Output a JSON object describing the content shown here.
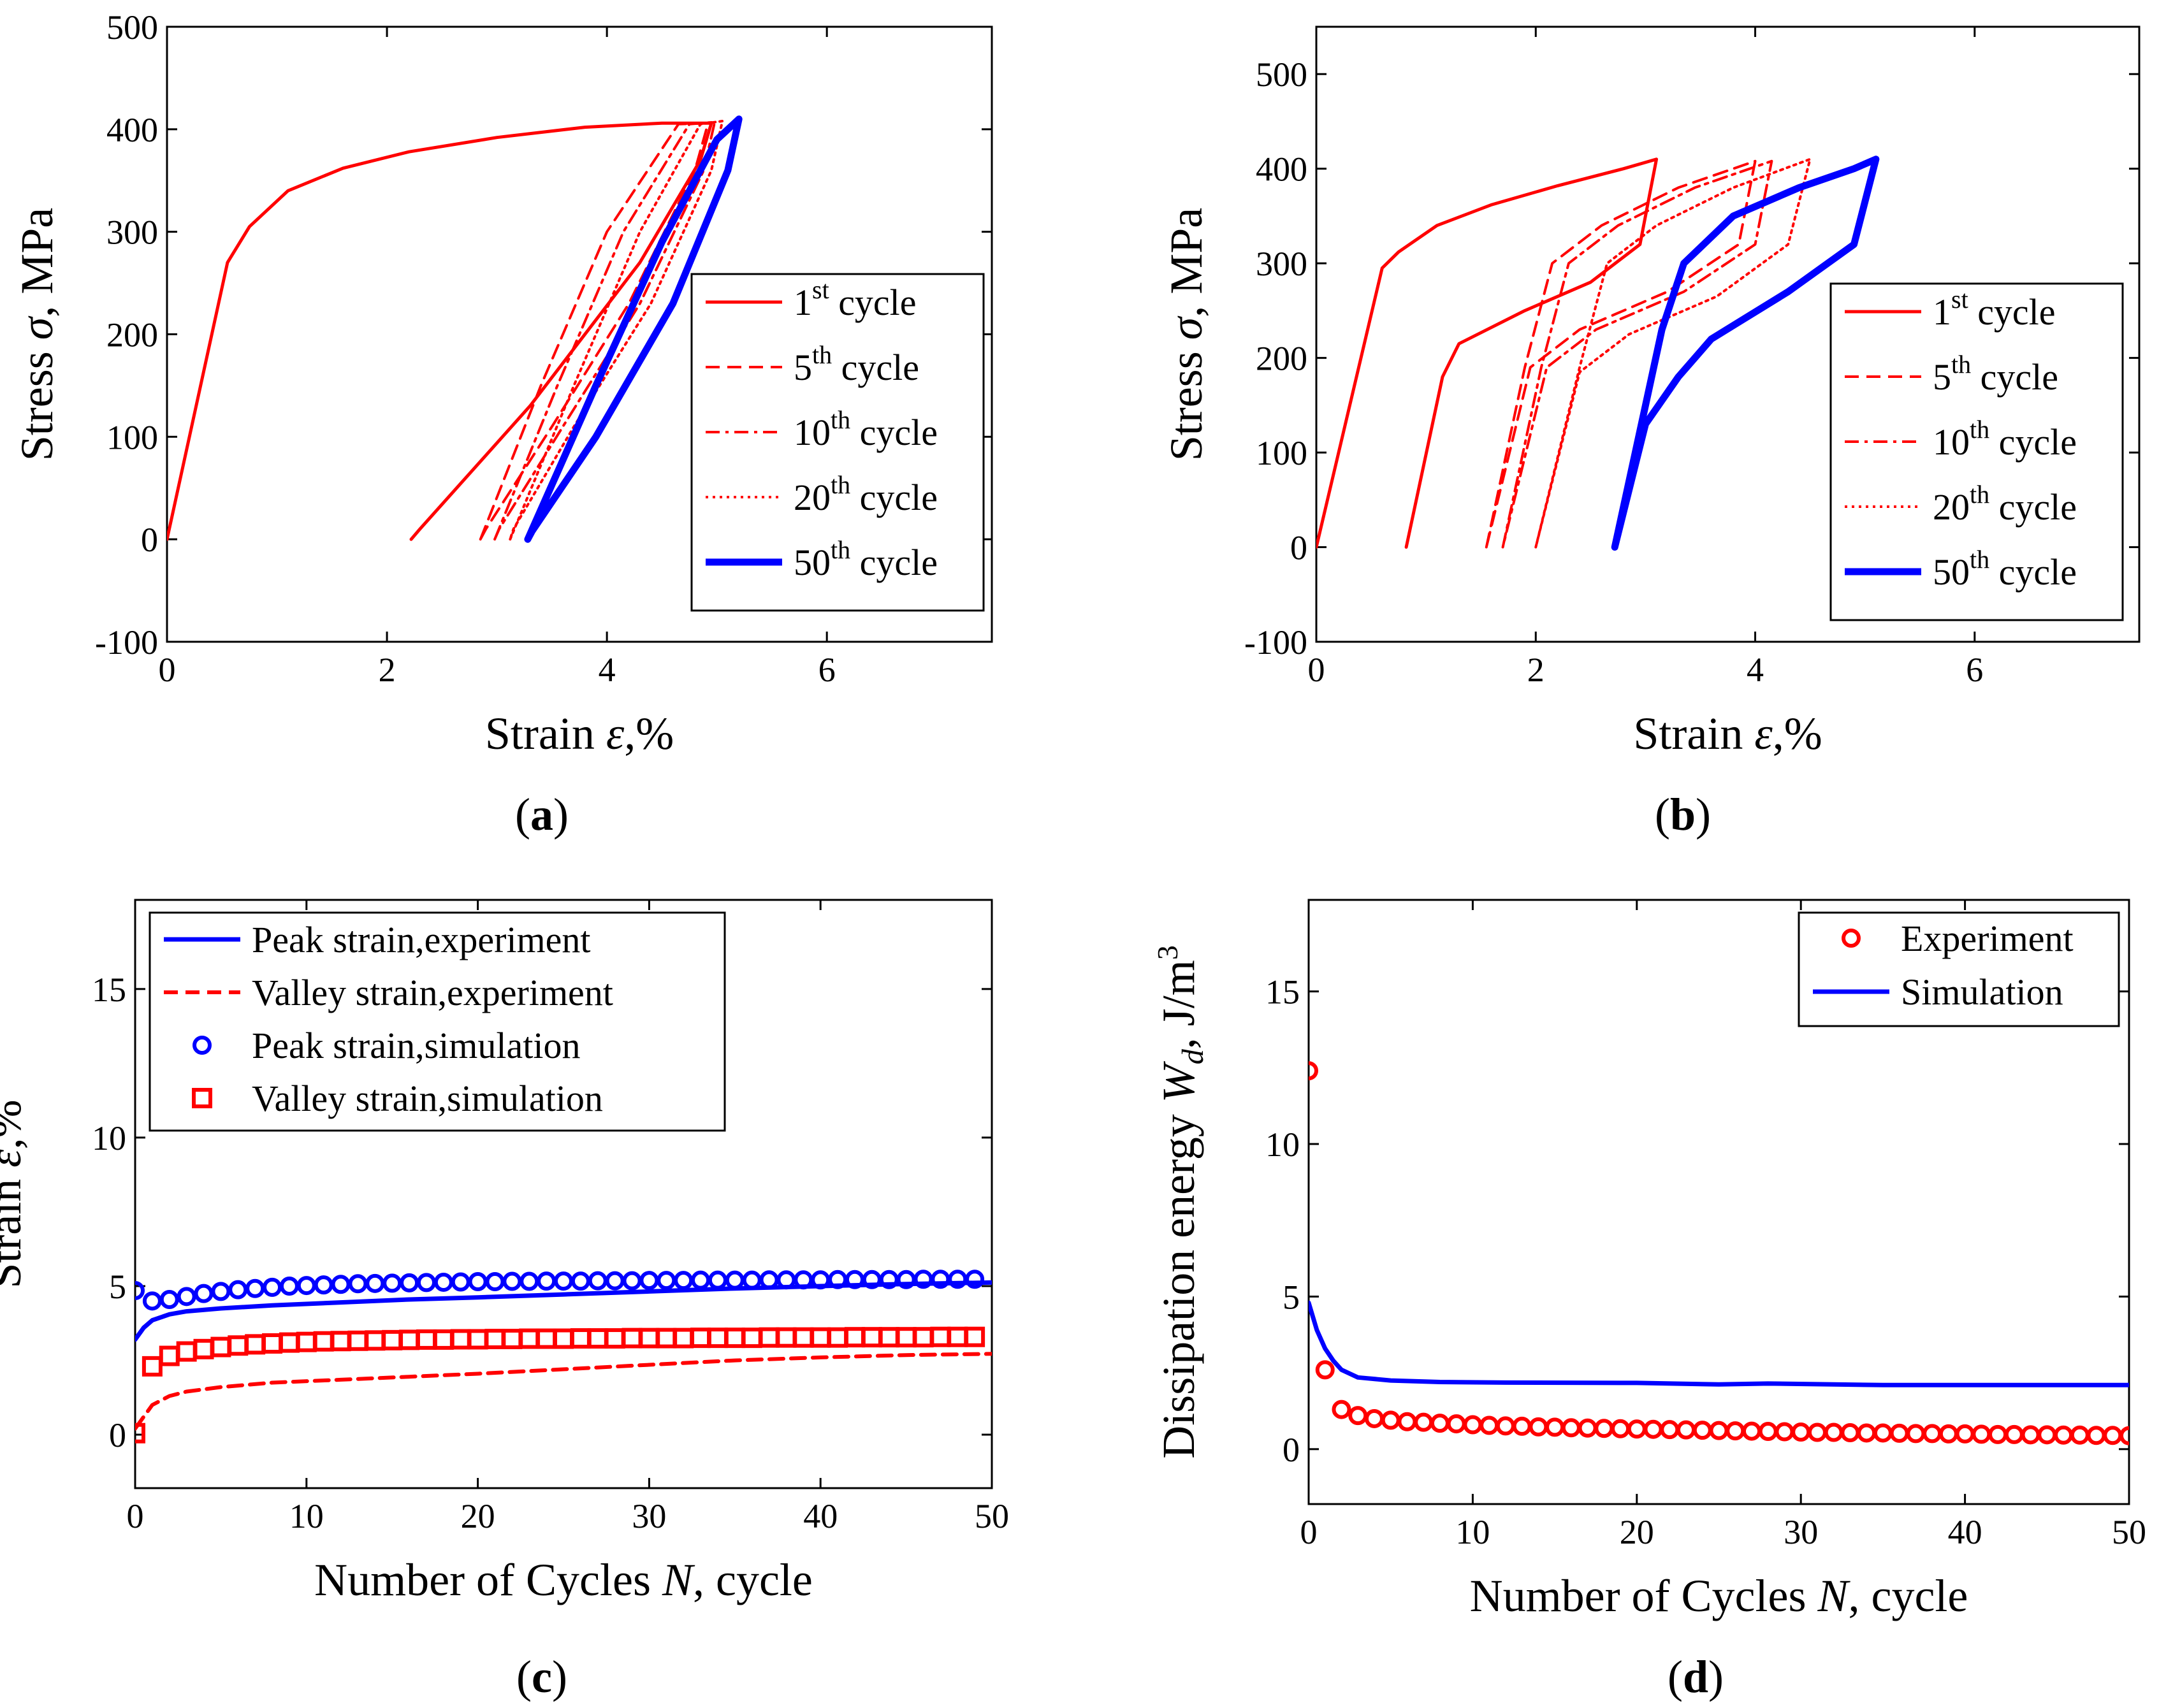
{
  "figure": {
    "panel_labels": {
      "a": "a",
      "b": "b",
      "c": "c",
      "d": "d"
    }
  },
  "chart_data": [
    {
      "id": "a",
      "type": "line",
      "xlabel": "Strain",
      "xsym": "ε",
      "xunit": ",%",
      "ylabel": "Stress",
      "ysym": "σ",
      "yunit": ", MPa",
      "xlim": [
        0,
        7.5
      ],
      "ylim": [
        -100,
        500
      ],
      "xticks": [
        0,
        2,
        4,
        6
      ],
      "yticks": [
        -100,
        0,
        100,
        200,
        300,
        400,
        500
      ],
      "legend_position": "right",
      "legend": [
        {
          "pre": "1",
          "sup": "st",
          "post": " cycle",
          "style": "solid",
          "color": "#ff0000"
        },
        {
          "pre": "5",
          "sup": "th",
          "post": " cycle",
          "style": "dashed",
          "color": "#ff0000"
        },
        {
          "pre": "10",
          "sup": "th",
          "post": " cycle",
          "style": "dashdot",
          "color": "#ff0000"
        },
        {
          "pre": "20",
          "sup": "th",
          "post": " cycle",
          "style": "dotted",
          "color": "#ff0000"
        },
        {
          "pre": "50",
          "sup": "th",
          "post": " cycle",
          "style": "thick",
          "color": "#0000ff"
        }
      ],
      "series": [
        {
          "name": "1st cycle",
          "style": "solid",
          "color": "#ff0000",
          "x": [
            0,
            0.55,
            0.75,
            1.1,
            1.6,
            2.2,
            3.0,
            3.8,
            4.5,
            4.95,
            4.85,
            4.3,
            3.3,
            2.3,
            2.22
          ],
          "y": [
            0,
            270,
            305,
            340,
            362,
            378,
            392,
            402,
            406,
            406,
            370,
            270,
            130,
            10,
            0
          ]
        },
        {
          "name": "5th cycle",
          "style": "dashed",
          "color": "#ff0000",
          "x": [
            2.85,
            3.4,
            4.0,
            4.65,
            4.92,
            4.8,
            4.2,
            3.5,
            2.9,
            2.85
          ],
          "y": [
            0,
            150,
            300,
            405,
            406,
            360,
            230,
            110,
            10,
            0
          ]
        },
        {
          "name": "10th cycle",
          "style": "dashdot",
          "color": "#ff0000",
          "x": [
            2.98,
            3.55,
            4.15,
            4.75,
            4.98,
            4.88,
            4.3,
            3.6,
            3.02,
            2.98
          ],
          "y": [
            0,
            150,
            300,
            405,
            407,
            360,
            230,
            110,
            10,
            0
          ]
        },
        {
          "name": "20th cycle",
          "style": "dotted",
          "color": "#ff0000",
          "x": [
            3.12,
            3.7,
            4.3,
            4.85,
            5.05,
            4.95,
            4.4,
            3.7,
            3.15,
            3.12
          ],
          "y": [
            0,
            150,
            300,
            405,
            408,
            360,
            230,
            110,
            10,
            0
          ]
        },
        {
          "name": "50th cycle",
          "style": "thick",
          "color": "#0000ff",
          "x": [
            3.28,
            3.9,
            4.5,
            5.0,
            5.2,
            5.1,
            4.6,
            3.9,
            3.32,
            3.28
          ],
          "y": [
            0,
            150,
            290,
            390,
            410,
            360,
            230,
            100,
            8,
            0
          ]
        }
      ]
    },
    {
      "id": "b",
      "type": "line",
      "xlabel": "Strain",
      "xsym": "ε",
      "xunit": ",%",
      "ylabel": "Stress",
      "ysym": "σ",
      "yunit": ", MPa",
      "xlim": [
        0,
        7.5
      ],
      "ylim": [
        -100,
        550
      ],
      "xticks": [
        0,
        2,
        4,
        6
      ],
      "yticks": [
        -100,
        0,
        100,
        200,
        300,
        400,
        500
      ],
      "legend_position": "right",
      "legend": [
        {
          "pre": "1",
          "sup": "st",
          "post": " cycle",
          "style": "solid",
          "color": "#ff0000"
        },
        {
          "pre": "5",
          "sup": "th",
          "post": " cycle",
          "style": "dashed",
          "color": "#ff0000"
        },
        {
          "pre": "10",
          "sup": "th",
          "post": " cycle",
          "style": "dashdot",
          "color": "#ff0000"
        },
        {
          "pre": "20",
          "sup": "th",
          "post": " cycle",
          "style": "dotted",
          "color": "#ff0000"
        },
        {
          "pre": "50",
          "sup": "th",
          "post": " cycle",
          "style": "thick",
          "color": "#0000ff"
        }
      ],
      "series": [
        {
          "name": "1st cycle",
          "style": "solid",
          "color": "#ff0000",
          "x": [
            0,
            0.6,
            0.75,
            1.1,
            1.6,
            2.2,
            2.8,
            3.1,
            2.95,
            2.5,
            1.9,
            1.3,
            1.15,
            0.82
          ],
          "y": [
            0,
            295,
            312,
            340,
            362,
            382,
            400,
            410,
            320,
            280,
            250,
            215,
            180,
            0
          ]
        },
        {
          "name": "5th cycle",
          "style": "dashed",
          "color": "#ff0000",
          "x": [
            1.55,
            1.9,
            2.15,
            2.6,
            3.3,
            4.0,
            3.85,
            3.2,
            2.4,
            1.95,
            1.55
          ],
          "y": [
            0,
            190,
            300,
            340,
            380,
            408,
            320,
            270,
            230,
            190,
            0
          ]
        },
        {
          "name": "10th cycle",
          "style": "dashdot",
          "color": "#ff0000",
          "x": [
            1.7,
            2.05,
            2.3,
            2.75,
            3.45,
            4.15,
            4.0,
            3.35,
            2.55,
            2.1,
            1.7
          ],
          "y": [
            0,
            190,
            300,
            340,
            380,
            408,
            320,
            270,
            230,
            190,
            0
          ]
        },
        {
          "name": "20th cycle",
          "style": "dotted",
          "color": "#ff0000",
          "x": [
            2.0,
            2.4,
            2.65,
            3.1,
            3.8,
            4.5,
            4.3,
            3.65,
            2.85,
            2.4,
            2.0
          ],
          "y": [
            0,
            190,
            300,
            340,
            380,
            410,
            320,
            265,
            225,
            185,
            0
          ]
        },
        {
          "name": "50th cycle",
          "style": "thick",
          "color": "#0000ff",
          "x": [
            2.72,
            3.15,
            3.35,
            3.8,
            4.4,
            4.9,
            5.1,
            4.9,
            4.3,
            3.6,
            3.3,
            3.0,
            2.72
          ],
          "y": [
            0,
            230,
            300,
            350,
            380,
            400,
            410,
            320,
            270,
            220,
            180,
            130,
            0
          ]
        }
      ]
    },
    {
      "id": "c",
      "type": "line",
      "xlabel": "Number of Cycles",
      "xsym": "N",
      "xunit": ", cycle",
      "ylabel": "Strain",
      "ysym": "ε",
      "yunit": ",%",
      "xlim": [
        0,
        50
      ],
      "ylim": [
        -1.8,
        18
      ],
      "xticks": [
        0,
        10,
        20,
        30,
        40,
        50
      ],
      "yticks": [
        0,
        5,
        10,
        15
      ],
      "legend_position": "top-left",
      "legend": [
        {
          "label": "Peak strain,experiment",
          "style": "solid",
          "color": "#0000ff"
        },
        {
          "label": "Valley strain,experiment",
          "style": "dashed",
          "color": "#ff0000"
        },
        {
          "label": "Peak strain,simulation",
          "style": "circle",
          "color": "#0000ff"
        },
        {
          "label": "Valley strain,simulation",
          "style": "square",
          "color": "#ff0000"
        }
      ],
      "series": [
        {
          "name": "Peak strain,experiment",
          "style": "solid",
          "color": "#0000ff",
          "x": [
            0,
            0.5,
            1,
            2,
            3,
            5,
            8,
            12,
            16,
            20,
            25,
            30,
            35,
            40,
            45,
            50
          ],
          "y": [
            3.2,
            3.6,
            3.85,
            4.05,
            4.15,
            4.25,
            4.35,
            4.45,
            4.55,
            4.62,
            4.72,
            4.82,
            4.92,
            5.0,
            5.07,
            5.12
          ]
        },
        {
          "name": "Valley strain,experiment",
          "style": "dashed",
          "color": "#ff0000",
          "x": [
            0,
            0.5,
            1,
            2,
            3,
            5,
            8,
            12,
            16,
            20,
            25,
            30,
            35,
            40,
            45,
            50
          ],
          "y": [
            0.2,
            0.6,
            1.0,
            1.3,
            1.45,
            1.6,
            1.75,
            1.85,
            1.95,
            2.05,
            2.2,
            2.35,
            2.5,
            2.6,
            2.68,
            2.72
          ]
        },
        {
          "name": "Peak strain,simulation",
          "style": "circle",
          "color": "#0000ff",
          "x": [
            0,
            1,
            2,
            3,
            4,
            5,
            6,
            7,
            8,
            9,
            10,
            11,
            12,
            13,
            14,
            15,
            16,
            17,
            18,
            19,
            20,
            21,
            22,
            23,
            24,
            25,
            26,
            27,
            28,
            29,
            30,
            31,
            32,
            33,
            34,
            35,
            36,
            37,
            38,
            39,
            40,
            41,
            42,
            43,
            44,
            45,
            46,
            47,
            48,
            49
          ],
          "y": [
            4.85,
            4.5,
            4.55,
            4.65,
            4.75,
            4.82,
            4.88,
            4.92,
            4.96,
            5.0,
            5.02,
            5.04,
            5.06,
            5.08,
            5.09,
            5.1,
            5.11,
            5.12,
            5.13,
            5.14,
            5.15,
            5.15,
            5.16,
            5.16,
            5.17,
            5.17,
            5.17,
            5.18,
            5.18,
            5.18,
            5.19,
            5.19,
            5.19,
            5.2,
            5.2,
            5.2,
            5.2,
            5.21,
            5.21,
            5.21,
            5.21,
            5.22,
            5.22,
            5.22,
            5.22,
            5.22,
            5.23,
            5.23,
            5.23,
            5.23
          ]
        },
        {
          "name": "Valley strain,simulation",
          "style": "square",
          "color": "#ff0000",
          "x": [
            0,
            1,
            2,
            3,
            4,
            5,
            6,
            7,
            8,
            9,
            10,
            11,
            12,
            13,
            14,
            15,
            16,
            17,
            18,
            19,
            20,
            21,
            22,
            23,
            24,
            25,
            26,
            27,
            28,
            29,
            30,
            31,
            32,
            33,
            34,
            35,
            36,
            37,
            38,
            39,
            40,
            41,
            42,
            43,
            44,
            45,
            46,
            47,
            48,
            49
          ],
          "y": [
            0.05,
            2.3,
            2.65,
            2.8,
            2.88,
            2.95,
            3.0,
            3.04,
            3.07,
            3.1,
            3.12,
            3.14,
            3.15,
            3.16,
            3.17,
            3.18,
            3.19,
            3.2,
            3.2,
            3.21,
            3.21,
            3.22,
            3.22,
            3.23,
            3.23,
            3.23,
            3.24,
            3.24,
            3.24,
            3.25,
            3.25,
            3.25,
            3.25,
            3.26,
            3.26,
            3.26,
            3.26,
            3.27,
            3.27,
            3.27,
            3.27,
            3.27,
            3.28,
            3.28,
            3.28,
            3.28,
            3.28,
            3.29,
            3.29,
            3.29
          ]
        }
      ]
    },
    {
      "id": "d",
      "type": "scatter",
      "xlabel": "Number of Cycles",
      "xsym": "N",
      "xunit": ", cycle",
      "ylabel": "Dissipation energy",
      "ysym": "W",
      "ysub": "d",
      "yunit": ", J/m",
      "ysup": "3",
      "xlim": [
        0,
        50
      ],
      "ylim": [
        -1.8,
        18
      ],
      "xticks": [
        0,
        10,
        20,
        30,
        40,
        50
      ],
      "yticks": [
        0,
        5,
        10,
        15
      ],
      "legend_position": "top-right",
      "legend": [
        {
          "label": "Experiment",
          "style": "circle",
          "color": "#ff0000"
        },
        {
          "label": "Simulation",
          "style": "solid",
          "color": "#0000ff"
        }
      ],
      "series": [
        {
          "name": "Experiment",
          "style": "circle",
          "color": "#ff0000",
          "x": [
            0,
            1,
            2,
            3,
            4,
            5,
            6,
            7,
            8,
            9,
            10,
            11,
            12,
            13,
            14,
            15,
            16,
            17,
            18,
            19,
            20,
            21,
            22,
            23,
            24,
            25,
            26,
            27,
            28,
            29,
            30,
            31,
            32,
            33,
            34,
            35,
            36,
            37,
            38,
            39,
            40,
            41,
            42,
            43,
            44,
            45,
            46,
            47,
            48,
            49,
            50
          ],
          "y": [
            12.4,
            2.6,
            1.3,
            1.1,
            1.0,
            0.95,
            0.9,
            0.88,
            0.85,
            0.83,
            0.8,
            0.78,
            0.76,
            0.75,
            0.73,
            0.72,
            0.7,
            0.69,
            0.68,
            0.67,
            0.66,
            0.65,
            0.64,
            0.63,
            0.62,
            0.61,
            0.6,
            0.59,
            0.58,
            0.57,
            0.56,
            0.55,
            0.55,
            0.54,
            0.53,
            0.53,
            0.52,
            0.51,
            0.51,
            0.5,
            0.5,
            0.49,
            0.48,
            0.48,
            0.47,
            0.47,
            0.46,
            0.46,
            0.45,
            0.45,
            0.44
          ]
        },
        {
          "name": "Simulation",
          "style": "solid",
          "color": "#0000ff",
          "x": [
            0,
            0.5,
            1,
            1.5,
            2,
            3,
            5,
            8,
            12,
            20,
            25,
            28,
            35,
            45,
            50
          ],
          "y": [
            4.8,
            3.9,
            3.3,
            2.9,
            2.6,
            2.35,
            2.25,
            2.2,
            2.18,
            2.17,
            2.12,
            2.15,
            2.1,
            2.1,
            2.1
          ]
        }
      ]
    }
  ]
}
